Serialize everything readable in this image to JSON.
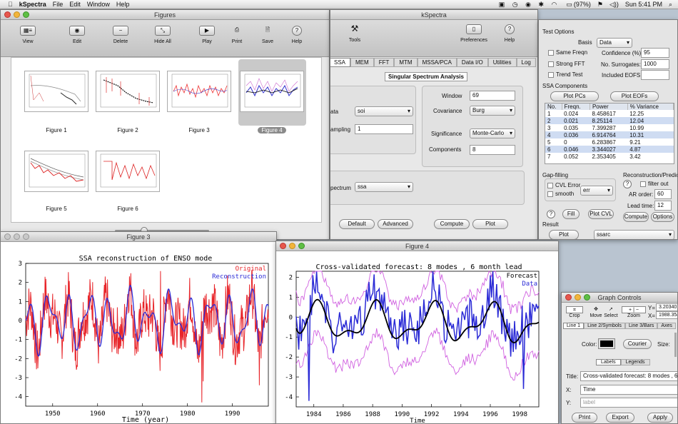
{
  "menubar": {
    "apple_icon": "apple-icon",
    "app": "kSpectra",
    "items": [
      "File",
      "Edit",
      "Window",
      "Help"
    ],
    "battery": "(97%)",
    "clock": "Sun 5:41 PM"
  },
  "figures_window": {
    "title": "Figures",
    "toolbar": [
      {
        "label": "View",
        "icon": "view-mode-icon"
      },
      {
        "label": "Edit",
        "icon": "eye-icon"
      },
      {
        "label": "Delete",
        "icon": "minus-icon"
      },
      {
        "label": "Hide All",
        "icon": "collapse-icon"
      },
      {
        "label": "Play",
        "icon": "play-icon"
      },
      {
        "label": "Print",
        "icon": "printer-icon"
      },
      {
        "label": "Save",
        "icon": "save-icon"
      },
      {
        "label": "Help",
        "icon": "help-icon"
      }
    ],
    "thumbnails": [
      "Figure 1",
      "Figure 2",
      "Figure 3",
      "Figure 4",
      "Figure 5",
      "Figure 6"
    ],
    "selected": "Figure 4"
  },
  "kspectra_window": {
    "title": "kSpectra",
    "toolbar": [
      {
        "label": "Tools",
        "icon": "tools-icon"
      },
      {
        "label": "Preferences",
        "icon": "preferences-icon"
      },
      {
        "label": "Help",
        "icon": "help-icon"
      }
    ],
    "tabs": [
      "SSA",
      "MEM",
      "FFT",
      "MTM",
      "MSSA/PCA",
      "Data I/O",
      "Utilities",
      "Log"
    ],
    "active_tab": "SSA",
    "panel_title": "Singular Spectrum Analysis",
    "data_label": "ata",
    "data_value": "soi",
    "sampling_label": "ampling",
    "sampling_value": "1",
    "window_label": "Window",
    "window_value": "69",
    "covariance_label": "Covariance",
    "covariance_value": "Burg",
    "significance_label": "Significance",
    "significance_value": "Monte-Carlo",
    "components_label": "Components",
    "components_value": "8",
    "spectrum_label": "pectrum",
    "spectrum_value": "ssa",
    "buttons": {
      "default": "Default",
      "advanced": "Advanced",
      "compute": "Compute",
      "plot": "Plot"
    }
  },
  "right_panel": {
    "test_options": "Test Options",
    "basis_label": "Basis",
    "basis_value": "Data",
    "same_freqn": "Same Freqn",
    "confidence_label": "Confidence (%):",
    "confidence_value": "95",
    "strong_fft": "Strong FFT",
    "surrogates_label": "No. Surrogates:",
    "surrogates_value": "1000",
    "trend_test": "Trend Test",
    "eofs_label": "Included EOFS:",
    "eofs_value": "",
    "ssa_components": "SSA Components",
    "plot_pcs": "Plot PCs",
    "plot_eofs": "Plot EOFs",
    "table_headers": [
      "No.",
      "Freqn.",
      "Power",
      "% Variance"
    ],
    "table_rows": [
      [
        "1",
        "0.024",
        "8.458617",
        "12.25"
      ],
      [
        "2",
        "0.021",
        "8.25114",
        "12.04"
      ],
      [
        "3",
        "0.035",
        "7.399287",
        "10.99"
      ],
      [
        "4",
        "0.036",
        "6.914764",
        "10.31"
      ],
      [
        "5",
        "0",
        "6.283867",
        "9.21"
      ],
      [
        "6",
        "0.046",
        "3.344027",
        "4.87"
      ],
      [
        "7",
        "0.052",
        "2.353405",
        "3.42"
      ]
    ],
    "gap_filling": "Gap-filling",
    "cvl_error": "CVL Error",
    "smooth": "smooth",
    "err_value": "err",
    "fill": "Fill",
    "plot_cvl": "Plot CVL",
    "recon": "Reconstruction/Prediction",
    "filter_out": "filter out",
    "ar_order_label": "AR order:",
    "ar_order_value": "60",
    "lead_label": "Lead time:",
    "lead_value": "12",
    "compute": "Compute",
    "options": "Options",
    "result": "Result",
    "result_plot": "Plot",
    "result_value": "ssarc"
  },
  "figure3": {
    "title": "Figure 3",
    "plot_title": "SSA reconstruction of ENSO mode",
    "xlabel": "Time (year)",
    "legend": [
      "Original",
      "Reconstruction"
    ],
    "yticks": [
      "3",
      "2",
      "1",
      "0",
      "-1",
      "-2",
      "-3",
      "-4"
    ],
    "xticks": [
      "1950",
      "1960",
      "1970",
      "1980",
      "1990"
    ],
    "colors": {
      "original": "#e8252a",
      "reconstruction": "#2b2bd6"
    }
  },
  "figure4": {
    "title": "Figure 4",
    "plot_title": "Cross-validated forecast: 8 modes , 6 month lead",
    "xlabel": "Time",
    "legend": [
      "Forecast",
      "Data"
    ],
    "yticks": [
      "2",
      "1",
      "0",
      "-1",
      "-2",
      "-3",
      "-4"
    ],
    "xticks": [
      "1984",
      "1986",
      "1988",
      "1990",
      "1992",
      "1994",
      "1996",
      "1998"
    ],
    "colors": {
      "forecast": "#000000",
      "data": "#2b2bd6",
      "bounds": "#d060e0"
    }
  },
  "graph_controls": {
    "title": "Graph Controls",
    "tools": [
      "Crop",
      "Move",
      "Select",
      "Zoom"
    ],
    "y_label": "Y=",
    "y_value": "3.20340",
    "x_label": "X=",
    "x_value": "1988.354",
    "tabs": [
      "Line 1",
      "Line 2/Symbols",
      "Line 3/Bars",
      "Axes"
    ],
    "color_label": "Color:",
    "font_value": "Courier",
    "size_label": "Size:",
    "sub_tabs": [
      "Labels",
      "Legends"
    ],
    "title_label": "Title:",
    "title_value": "Cross-validated forecast: 8 modes , 6",
    "x_axis_label": "X:",
    "x_axis_value": "Time",
    "y_axis_label": "Y:",
    "y_axis_placeholder": "label",
    "buttons": [
      "Print",
      "Export",
      "Apply"
    ]
  },
  "chart_data": [
    {
      "type": "line",
      "title": "SSA reconstruction of ENSO mode",
      "xlabel": "Time (year)",
      "ylabel": "",
      "xlim": [
        1944,
        1998
      ],
      "ylim": [
        -4.5,
        3
      ],
      "series": [
        {
          "name": "Original",
          "values": "high-frequency monthly SOI (not individually readable)"
        },
        {
          "name": "Reconstruction",
          "values": "smoothed ENSO-mode reconstruction"
        }
      ]
    },
    {
      "type": "line",
      "title": "Cross-validated forecast: 8 modes , 6 month lead",
      "xlabel": "Time",
      "ylabel": "",
      "xlim": [
        1982.8,
        1999.3
      ],
      "ylim": [
        -4.5,
        2.3
      ],
      "series": [
        {
          "name": "Forecast",
          "values": "black line"
        },
        {
          "name": "Data",
          "values": "blue line"
        }
      ]
    }
  ]
}
